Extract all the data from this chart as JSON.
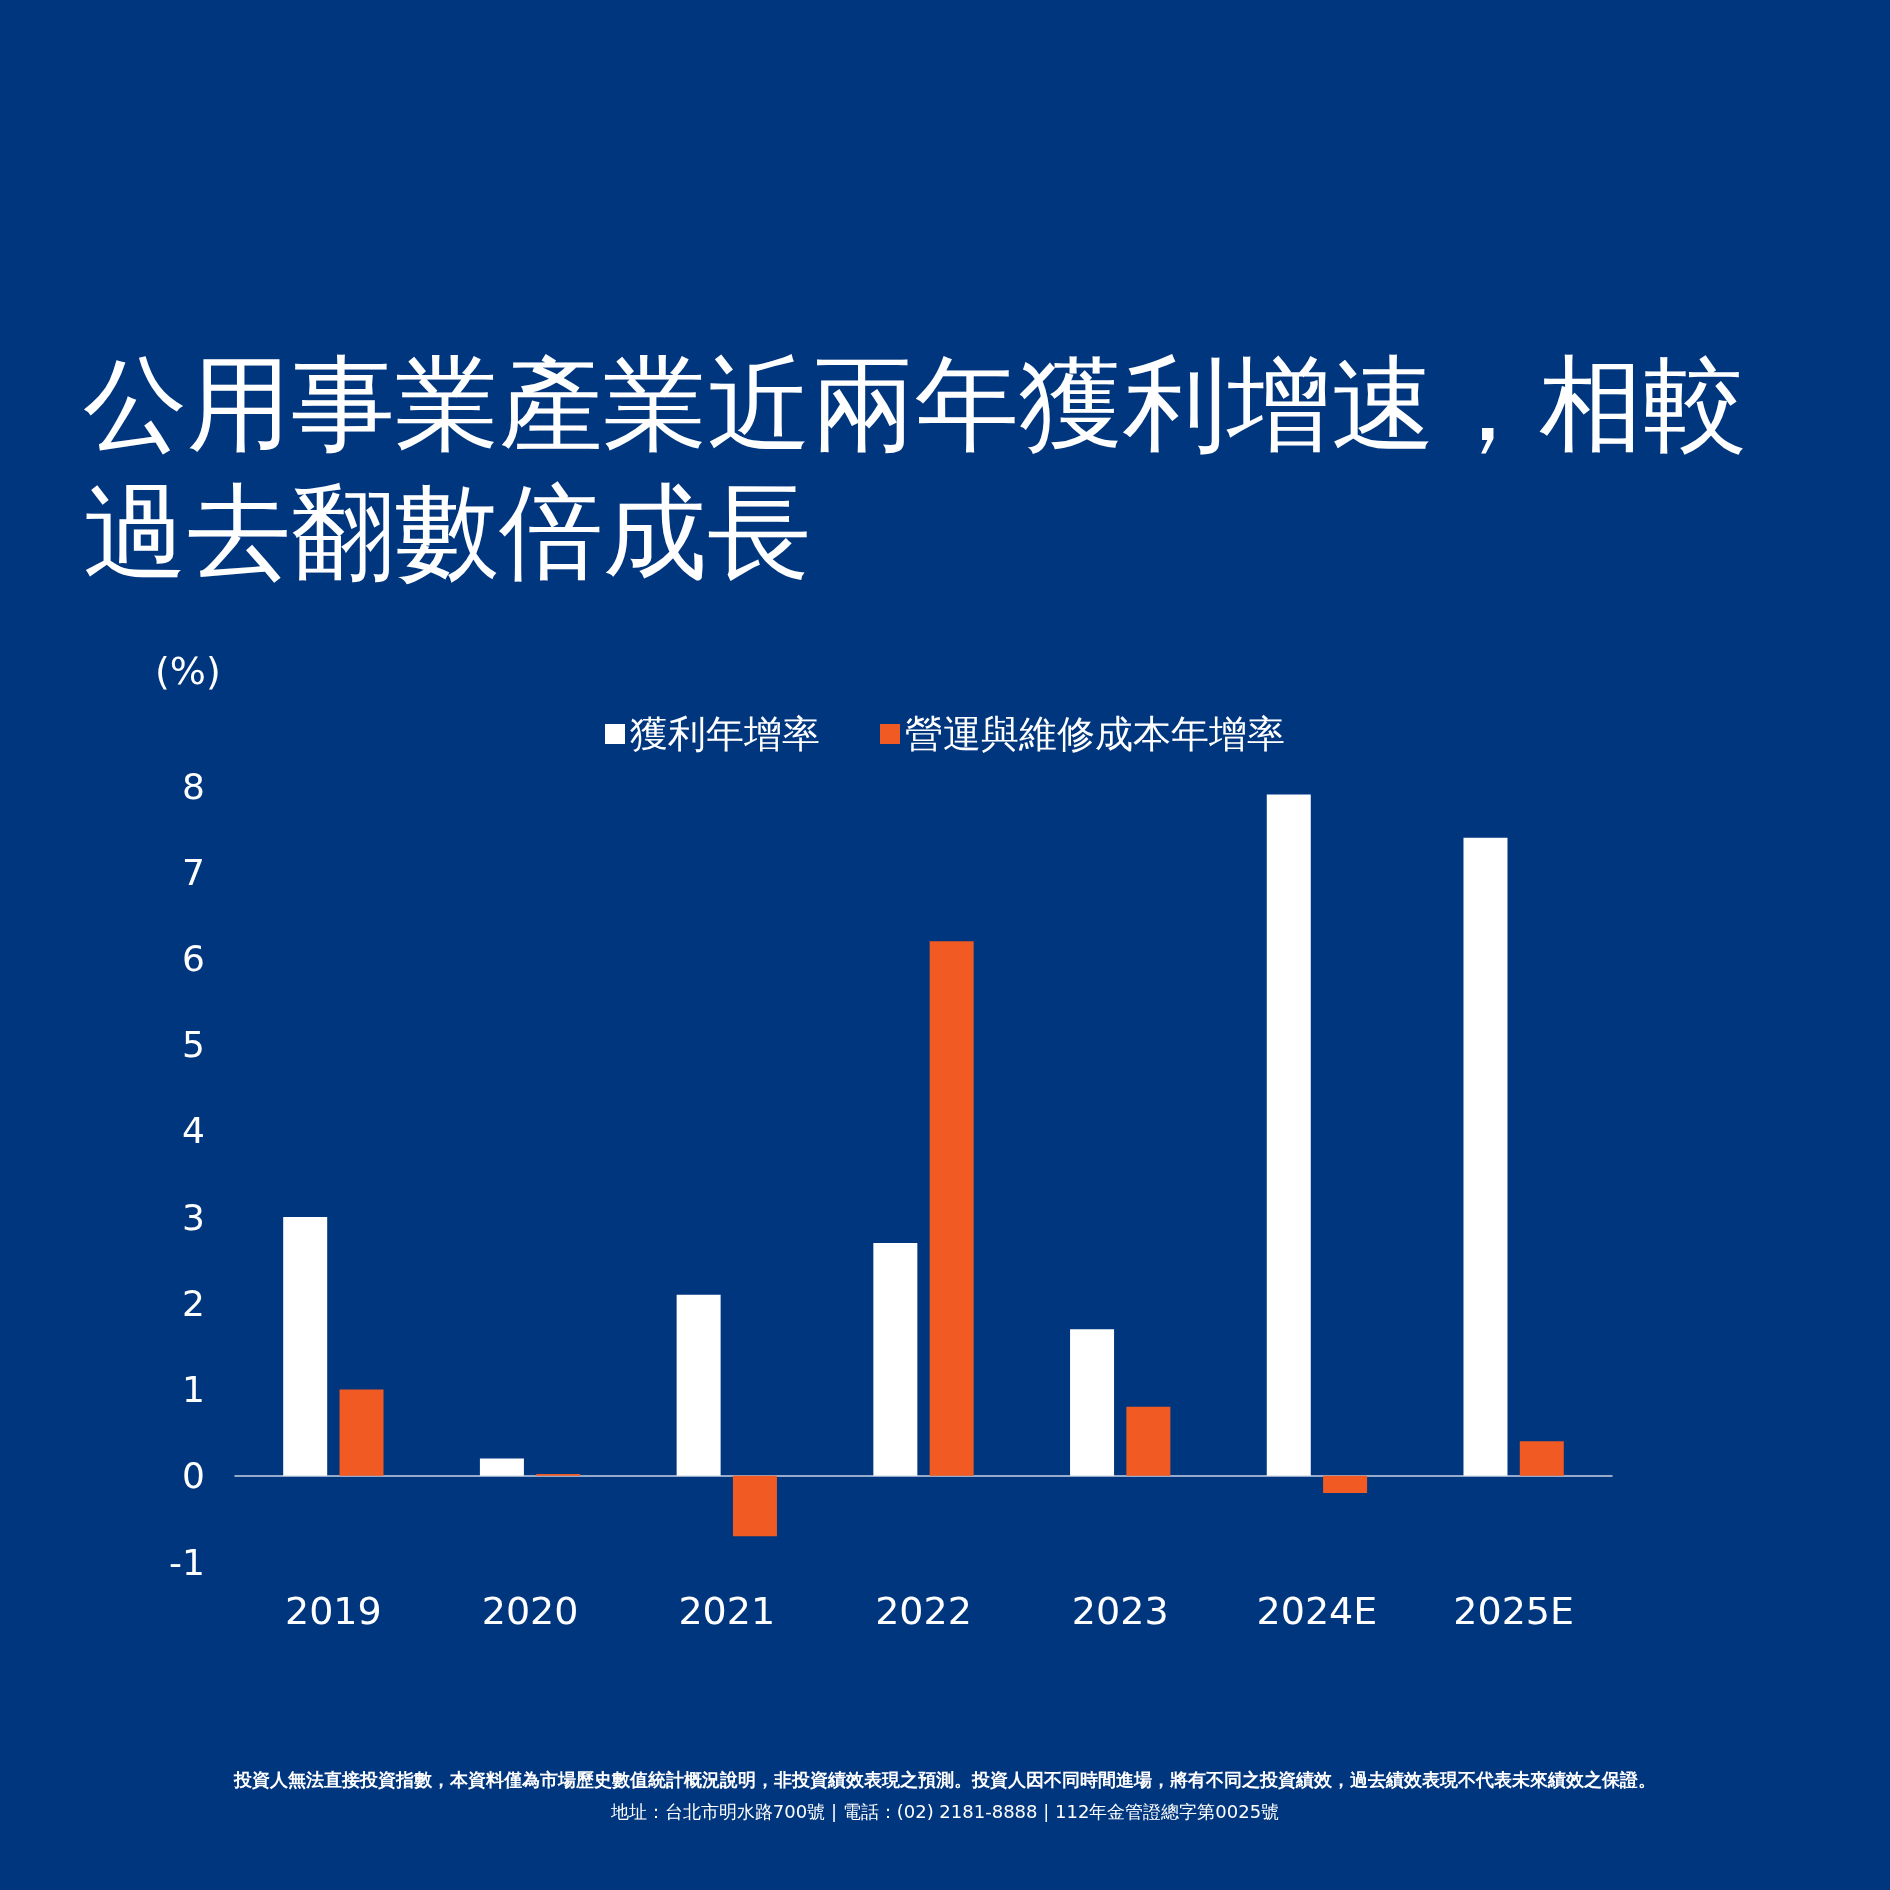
{
  "chart_data": {
    "type": "bar",
    "title": "公用事業產業近兩年獲利增速，相較過去翻數倍成長",
    "ylabel": "(%)",
    "categories": [
      "2019",
      "2020",
      "2021",
      "2022",
      "2023",
      "2024E",
      "2025E"
    ],
    "series": [
      {
        "name": "獲利年增率",
        "color": "#ffffff",
        "values": [
          3.0,
          0.2,
          2.1,
          2.7,
          1.7,
          7.9,
          7.4
        ]
      },
      {
        "name": "營運與維修成本年增率",
        "color": "#f15a22",
        "values": [
          1.0,
          0.02,
          -0.7,
          6.2,
          0.8,
          -0.2,
          0.4
        ]
      }
    ],
    "ylim": [
      -1,
      8
    ],
    "yticks": [
      -1,
      0,
      1,
      2,
      3,
      4,
      5,
      6,
      7,
      8
    ],
    "legend": "top",
    "annotations": [
      "投資人無法直接投資指數，本資料僅為市場歷史數值統計概況說明，非投資績效表現之預測。投資人因不同時間進場，將有不同之投資績效，過去績效表現不代表未來績效之保證。",
      "地址：台北市明水路700號 | 電話：(02) 2181-8888 | 112年金管證總字第0025號"
    ]
  }
}
